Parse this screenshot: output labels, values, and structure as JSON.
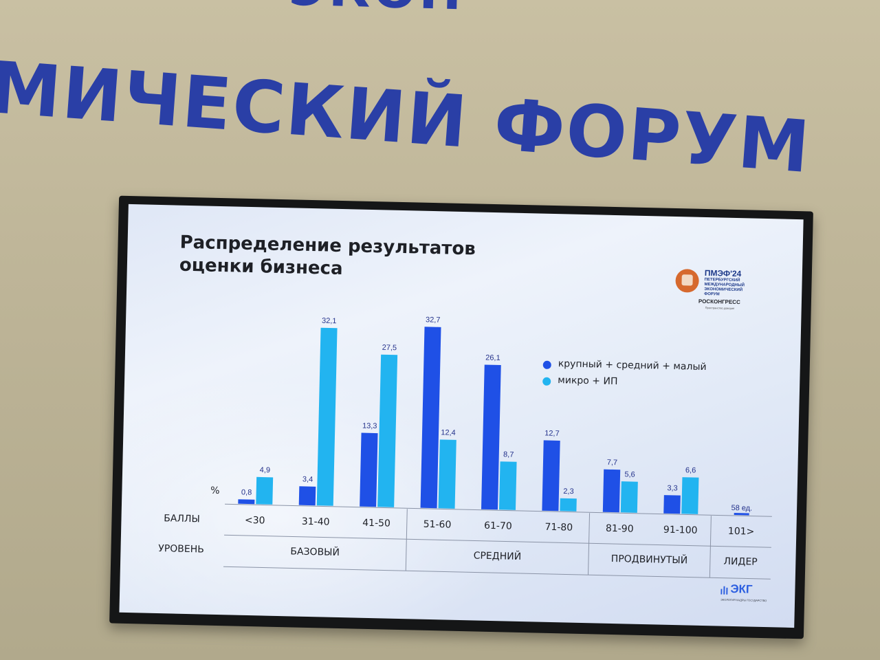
{
  "wall": {
    "line1": "ЭКОН",
    "line2": "МИЧЕСКИЙ ФОРУМ"
  },
  "slide": {
    "title_line1": "Распределение результатов",
    "title_line2": "оценки бизнеса"
  },
  "logo_top": {
    "name": "ПМЭФ'24",
    "sub_line1": "ПЕТЕРБУРГСКИЙ",
    "sub_line2": "МЕЖДУНАРОДНЫЙ",
    "sub_line3": "ЭКОНОМИЧЕСКИЙ",
    "sub_line4": "ФОРУМ",
    "org": "РОСКОНГРЕСС",
    "org_sub": "Пространство доверия"
  },
  "logo_bottom": {
    "name": "ЭКГ",
    "sub": "ЭКОЛОГИЯ КАДРЫ ГОСУДАРСТВО"
  },
  "colors": {
    "series_large": "#1f50e6",
    "series_micro": "#22b4f0",
    "text": "#1e2026",
    "value_text": "#22308a",
    "rule": "#8a93a6"
  },
  "chart_data": {
    "type": "bar",
    "title": "Распределение результатов оценки бизнеса",
    "ylabel": "%",
    "row_labels": {
      "scores": "БАЛЛЫ",
      "level": "УРОВЕНЬ"
    },
    "categories": [
      "<30",
      "31-40",
      "41-50",
      "51-60",
      "61-70",
      "71-80",
      "81-90",
      "91-100",
      "101>"
    ],
    "series": [
      {
        "name": "крупный + средний + малый",
        "values": [
          0.8,
          3.4,
          13.3,
          32.7,
          26.1,
          12.7,
          7.7,
          3.3,
          null
        ],
        "labels": [
          "0,8",
          "3,4",
          "13,3",
          "32,7",
          "26,1",
          "12,7",
          "7,7",
          "3,3",
          null
        ]
      },
      {
        "name": "микро + ИП",
        "values": [
          4.9,
          32.1,
          27.5,
          12.4,
          8.7,
          2.3,
          5.6,
          6.6,
          null
        ],
        "labels": [
          "4,9",
          "32,1",
          "27,5",
          "12,4",
          "8,7",
          "2,3",
          "5,6",
          "6,6",
          null
        ]
      }
    ],
    "special": {
      "category": "101>",
      "label": "58 ед."
    },
    "levels": [
      {
        "name": "БАЗОВЫЙ",
        "from": 0,
        "to": 2
      },
      {
        "name": "СРЕДНИЙ",
        "from": 3,
        "to": 5
      },
      {
        "name": "ПРОДВИНУТЫЙ",
        "from": 6,
        "to": 7
      },
      {
        "name": "ЛИДЕР",
        "from": 8,
        "to": 8
      }
    ],
    "legend_position": "right",
    "ylim": [
      0,
      35
    ],
    "grid": false
  }
}
